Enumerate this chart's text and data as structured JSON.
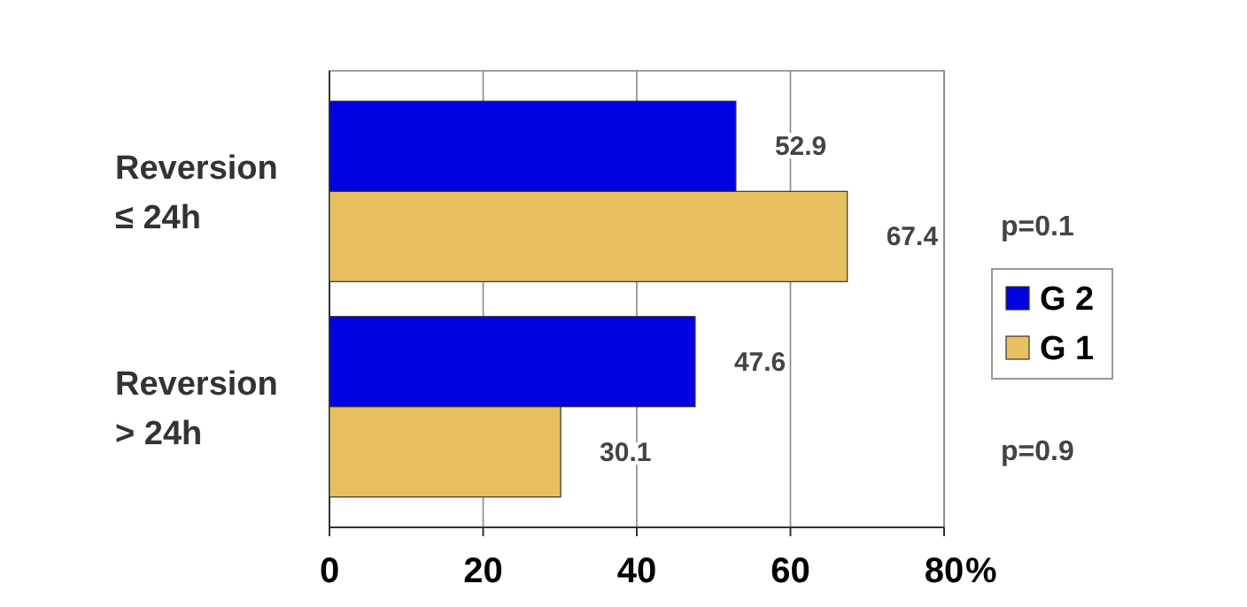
{
  "chart_data": {
    "type": "bar",
    "orientation": "horizontal",
    "categories": [
      "Reversion\n≤ 24h",
      "Reversion\n> 24h"
    ],
    "series": [
      {
        "name": "G 2",
        "color": "#0000e0",
        "values": [
          52.9,
          47.6
        ]
      },
      {
        "name": "G 1",
        "color": "#e8c060",
        "values": [
          67.4,
          30.1
        ]
      }
    ],
    "xlabel": "%",
    "xlim": [
      0,
      80
    ],
    "xticks": [
      0,
      20,
      40,
      60,
      80
    ],
    "grid": "x",
    "legend": "right",
    "data_labels": true,
    "annotations": [
      "p=0.1",
      "p=0.9"
    ]
  }
}
